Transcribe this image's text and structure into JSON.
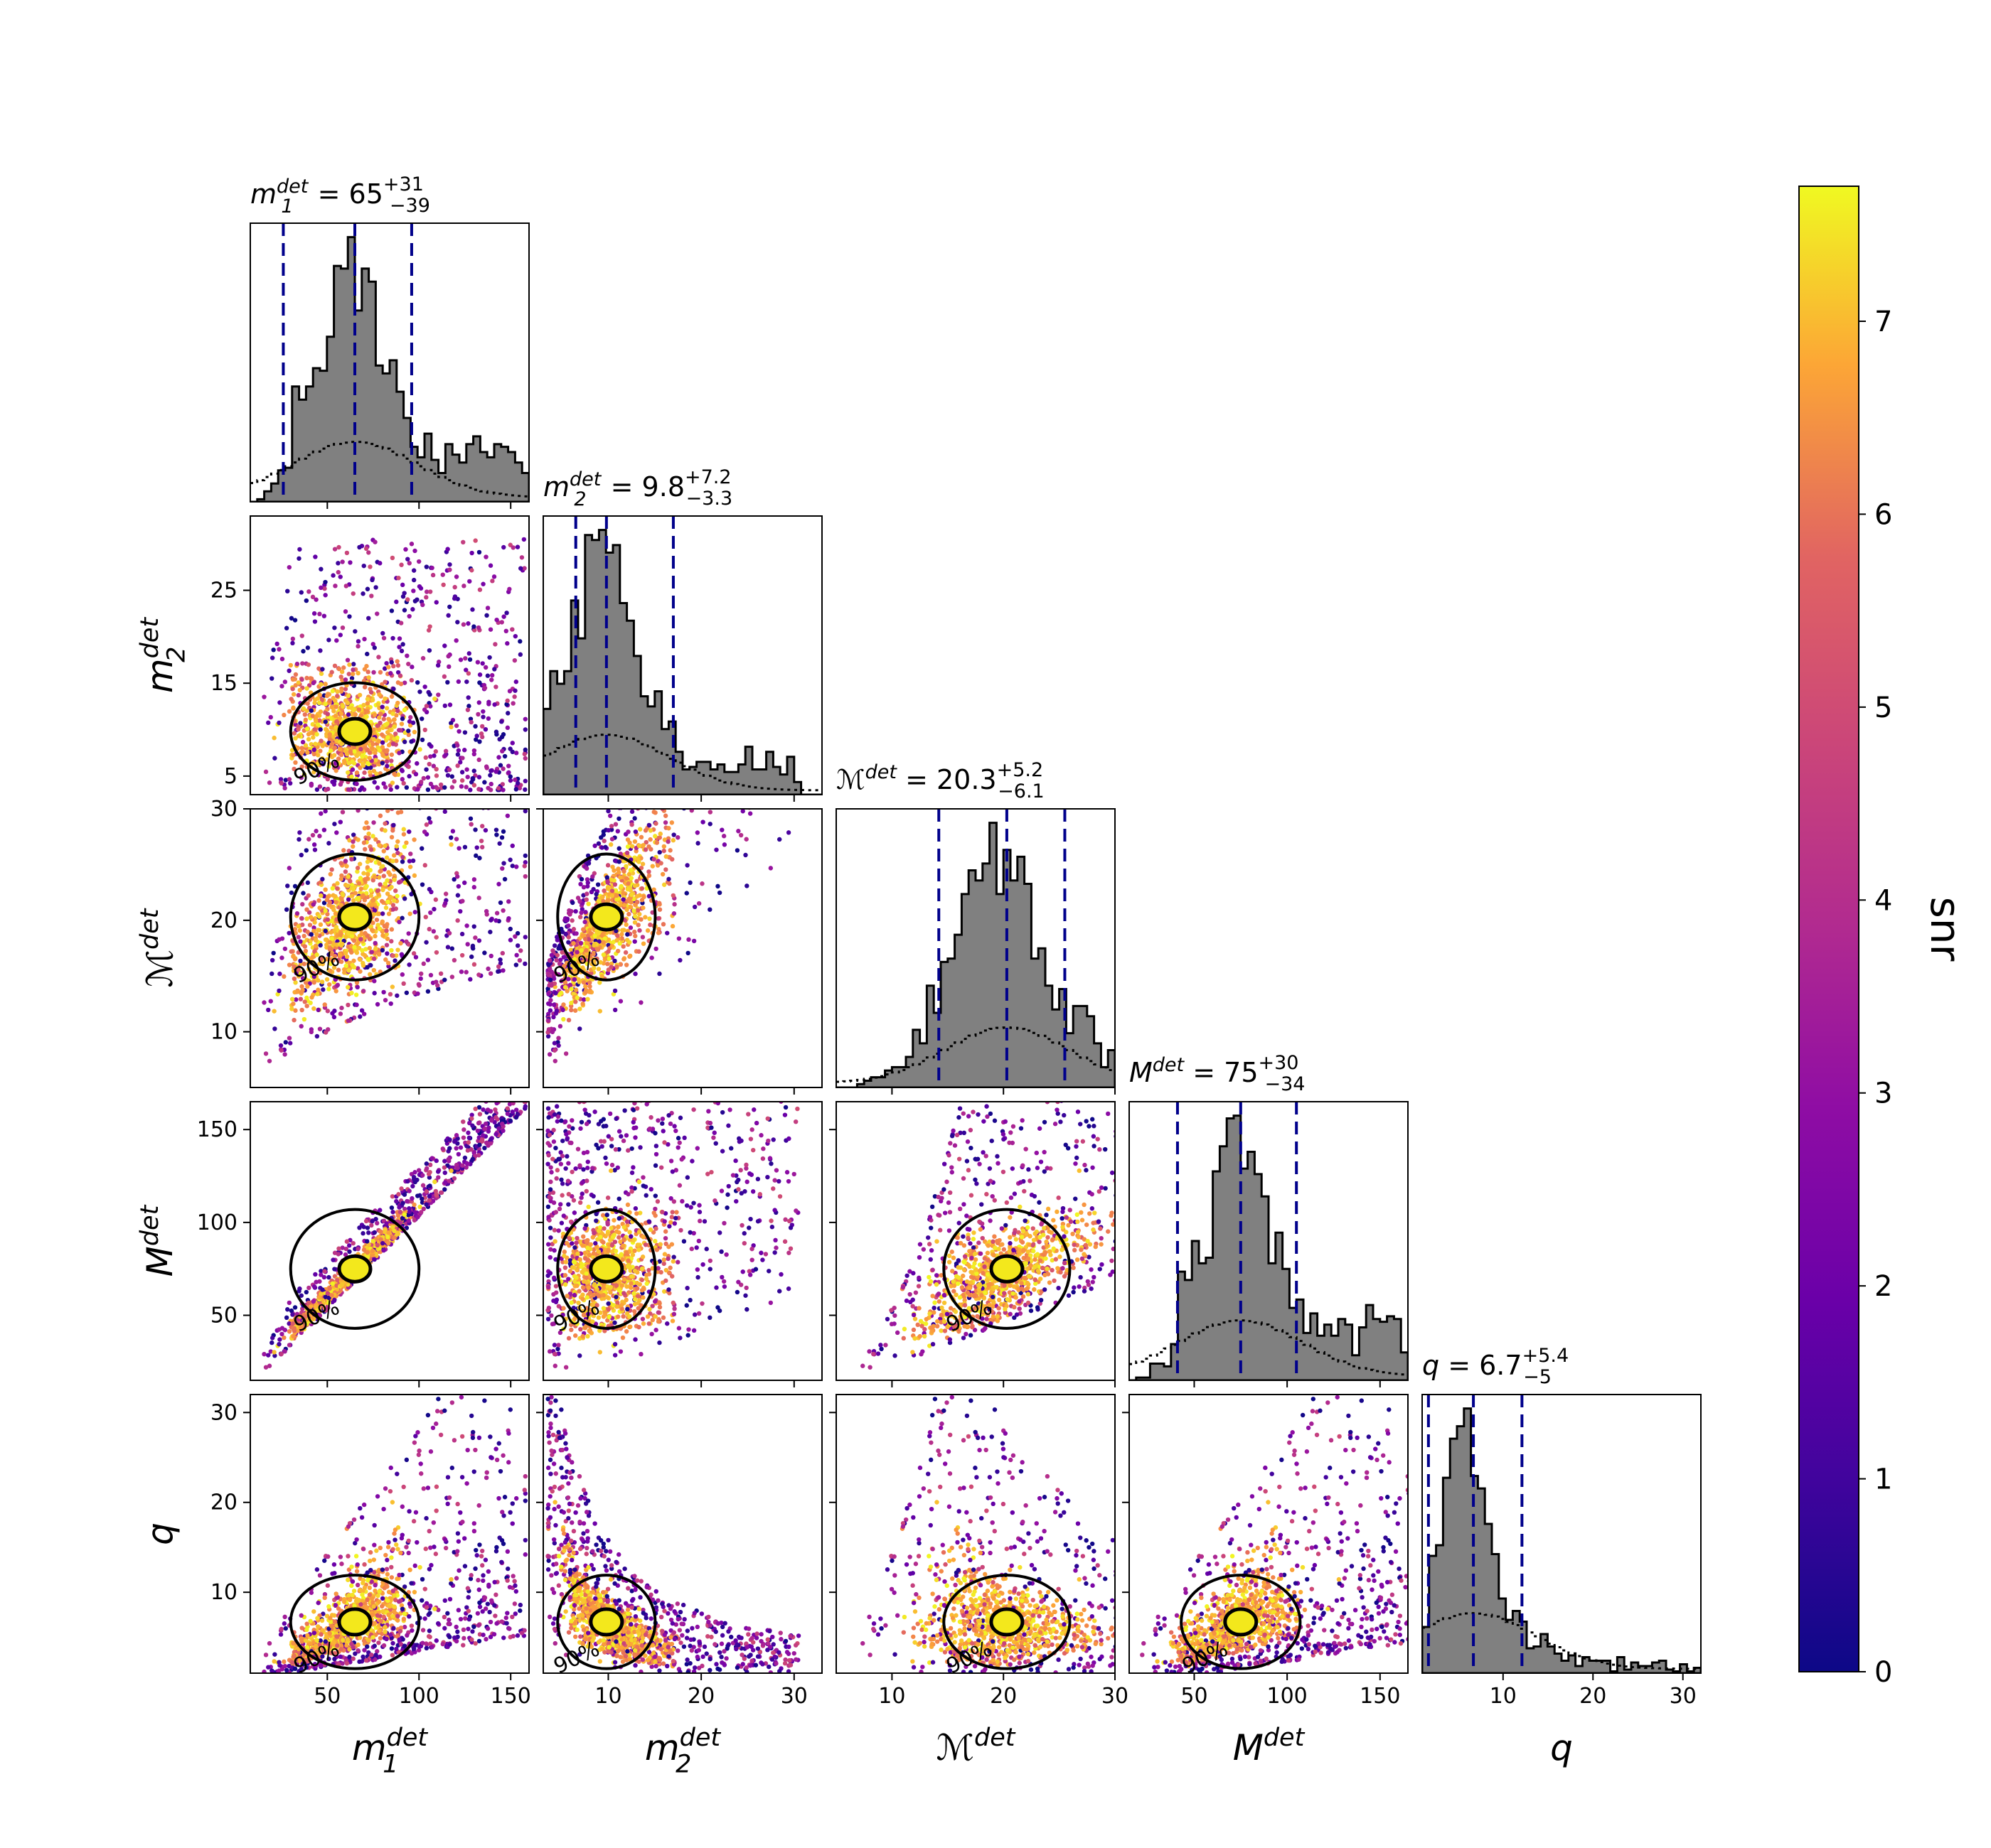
{
  "chart_data": {
    "type": "scatter",
    "title": "",
    "colorbar": {
      "label": "snr",
      "min": 0,
      "max": 7.7,
      "ticks": [
        "0",
        "1",
        "2",
        "3",
        "4",
        "5",
        "6",
        "7"
      ],
      "colormap": "plasma"
    },
    "contour_label": "90%",
    "params": [
      {
        "key": "m1",
        "xlabel": "m1_det",
        "title_prefix": "m",
        "title_sub": "1",
        "title_sup": "det",
        "median": "65",
        "plus": "+31",
        "minus": "−39",
        "range": [
          8,
          160
        ],
        "ticks": [
          50,
          100,
          150
        ],
        "median_value": 65,
        "lower": 26,
        "upper": 96
      },
      {
        "key": "m2",
        "xlabel": "m2_det",
        "title_prefix": "m",
        "title_sub": "2",
        "title_sup": "det",
        "median": "9.8",
        "plus": "+7.2",
        "minus": "−3.3",
        "range": [
          3,
          33
        ],
        "ticks": [
          10,
          20,
          30
        ],
        "yticks": [
          5,
          15,
          25
        ],
        "median_value": 9.8,
        "lower": 6.5,
        "upper": 17
      },
      {
        "key": "mc",
        "xlabel": "Mc_det",
        "title_prefix": "ℳ",
        "title_sub": "",
        "title_sup": "det",
        "median": "20.3",
        "plus": "+5.2",
        "minus": "−6.1",
        "range": [
          5,
          30
        ],
        "ticks": [
          10,
          20,
          30
        ],
        "yticks": [
          10,
          20,
          30
        ],
        "median_value": 20.3,
        "lower": 14.2,
        "upper": 25.5
      },
      {
        "key": "mt",
        "xlabel": "M_det",
        "title_prefix": "M",
        "title_sub": "",
        "title_sup": "det",
        "median": "75",
        "plus": "+30",
        "minus": "−34",
        "range": [
          15,
          165
        ],
        "ticks": [
          50,
          100,
          150
        ],
        "yticks": [
          50,
          100,
          150
        ],
        "median_value": 75,
        "lower": 41,
        "upper": 105
      },
      {
        "key": "q",
        "xlabel": "q",
        "title_prefix": "q",
        "title_sub": "",
        "title_sup": "",
        "median": "6.7",
        "plus": "+5.4",
        "minus": "−5",
        "range": [
          1,
          32
        ],
        "ticks": [
          10,
          20,
          30
        ],
        "yticks": [
          10,
          20,
          30
        ],
        "median_value": 6.7,
        "lower": 1.7,
        "upper": 12.1
      }
    ],
    "axis_labels": [
      {
        "base": "m",
        "sub": "1",
        "sup": "det"
      },
      {
        "base": "m",
        "sub": "2",
        "sup": "det"
      },
      {
        "base": "ℳ",
        "sub": "",
        "sup": "det"
      },
      {
        "base": "M",
        "sub": "",
        "sup": "det"
      },
      {
        "base": "q",
        "sub": "",
        "sup": ""
      }
    ],
    "legend": "none",
    "grid": false
  }
}
